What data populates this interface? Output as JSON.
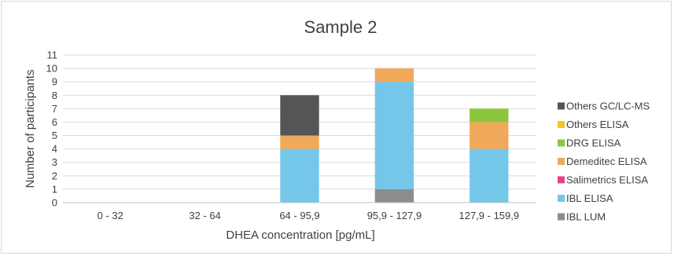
{
  "chart_data": {
    "type": "bar",
    "stacked": true,
    "title": "Sample 2",
    "xlabel": "DHEA concentration [pg/mL]",
    "ylabel": "Number of participants",
    "ylim": [
      0,
      11
    ],
    "yticks": [
      0,
      1,
      2,
      3,
      4,
      5,
      6,
      7,
      8,
      9,
      10,
      11
    ],
    "grid": true,
    "legend_position": "right",
    "categories": [
      "0 - 32",
      "32 - 64",
      "64 - 95,9",
      "95,9 - 127,9",
      "127,9 - 159,9"
    ],
    "series": [
      {
        "name": "IBL LUM",
        "color": "#8c8c8c",
        "values": [
          0,
          0,
          0,
          1,
          0
        ]
      },
      {
        "name": "IBL ELISA",
        "color": "#74c7e8",
        "values": [
          0,
          0,
          4,
          8,
          4
        ]
      },
      {
        "name": "Salimetrics ELISA",
        "color": "#e8408a",
        "values": [
          0,
          0,
          0,
          0,
          0
        ]
      },
      {
        "name": "Demeditec ELISA",
        "color": "#f0a95a",
        "values": [
          0,
          0,
          1,
          1,
          2
        ]
      },
      {
        "name": "DRG ELISA",
        "color": "#8cc63f",
        "values": [
          0,
          0,
          0,
          0,
          1
        ]
      },
      {
        "name": "Others ELISA",
        "color": "#f7c325",
        "values": [
          0,
          0,
          0,
          0,
          0
        ]
      },
      {
        "name": "Others GC/LC-MS",
        "color": "#555555",
        "values": [
          0,
          0,
          3,
          0,
          0
        ]
      }
    ]
  }
}
